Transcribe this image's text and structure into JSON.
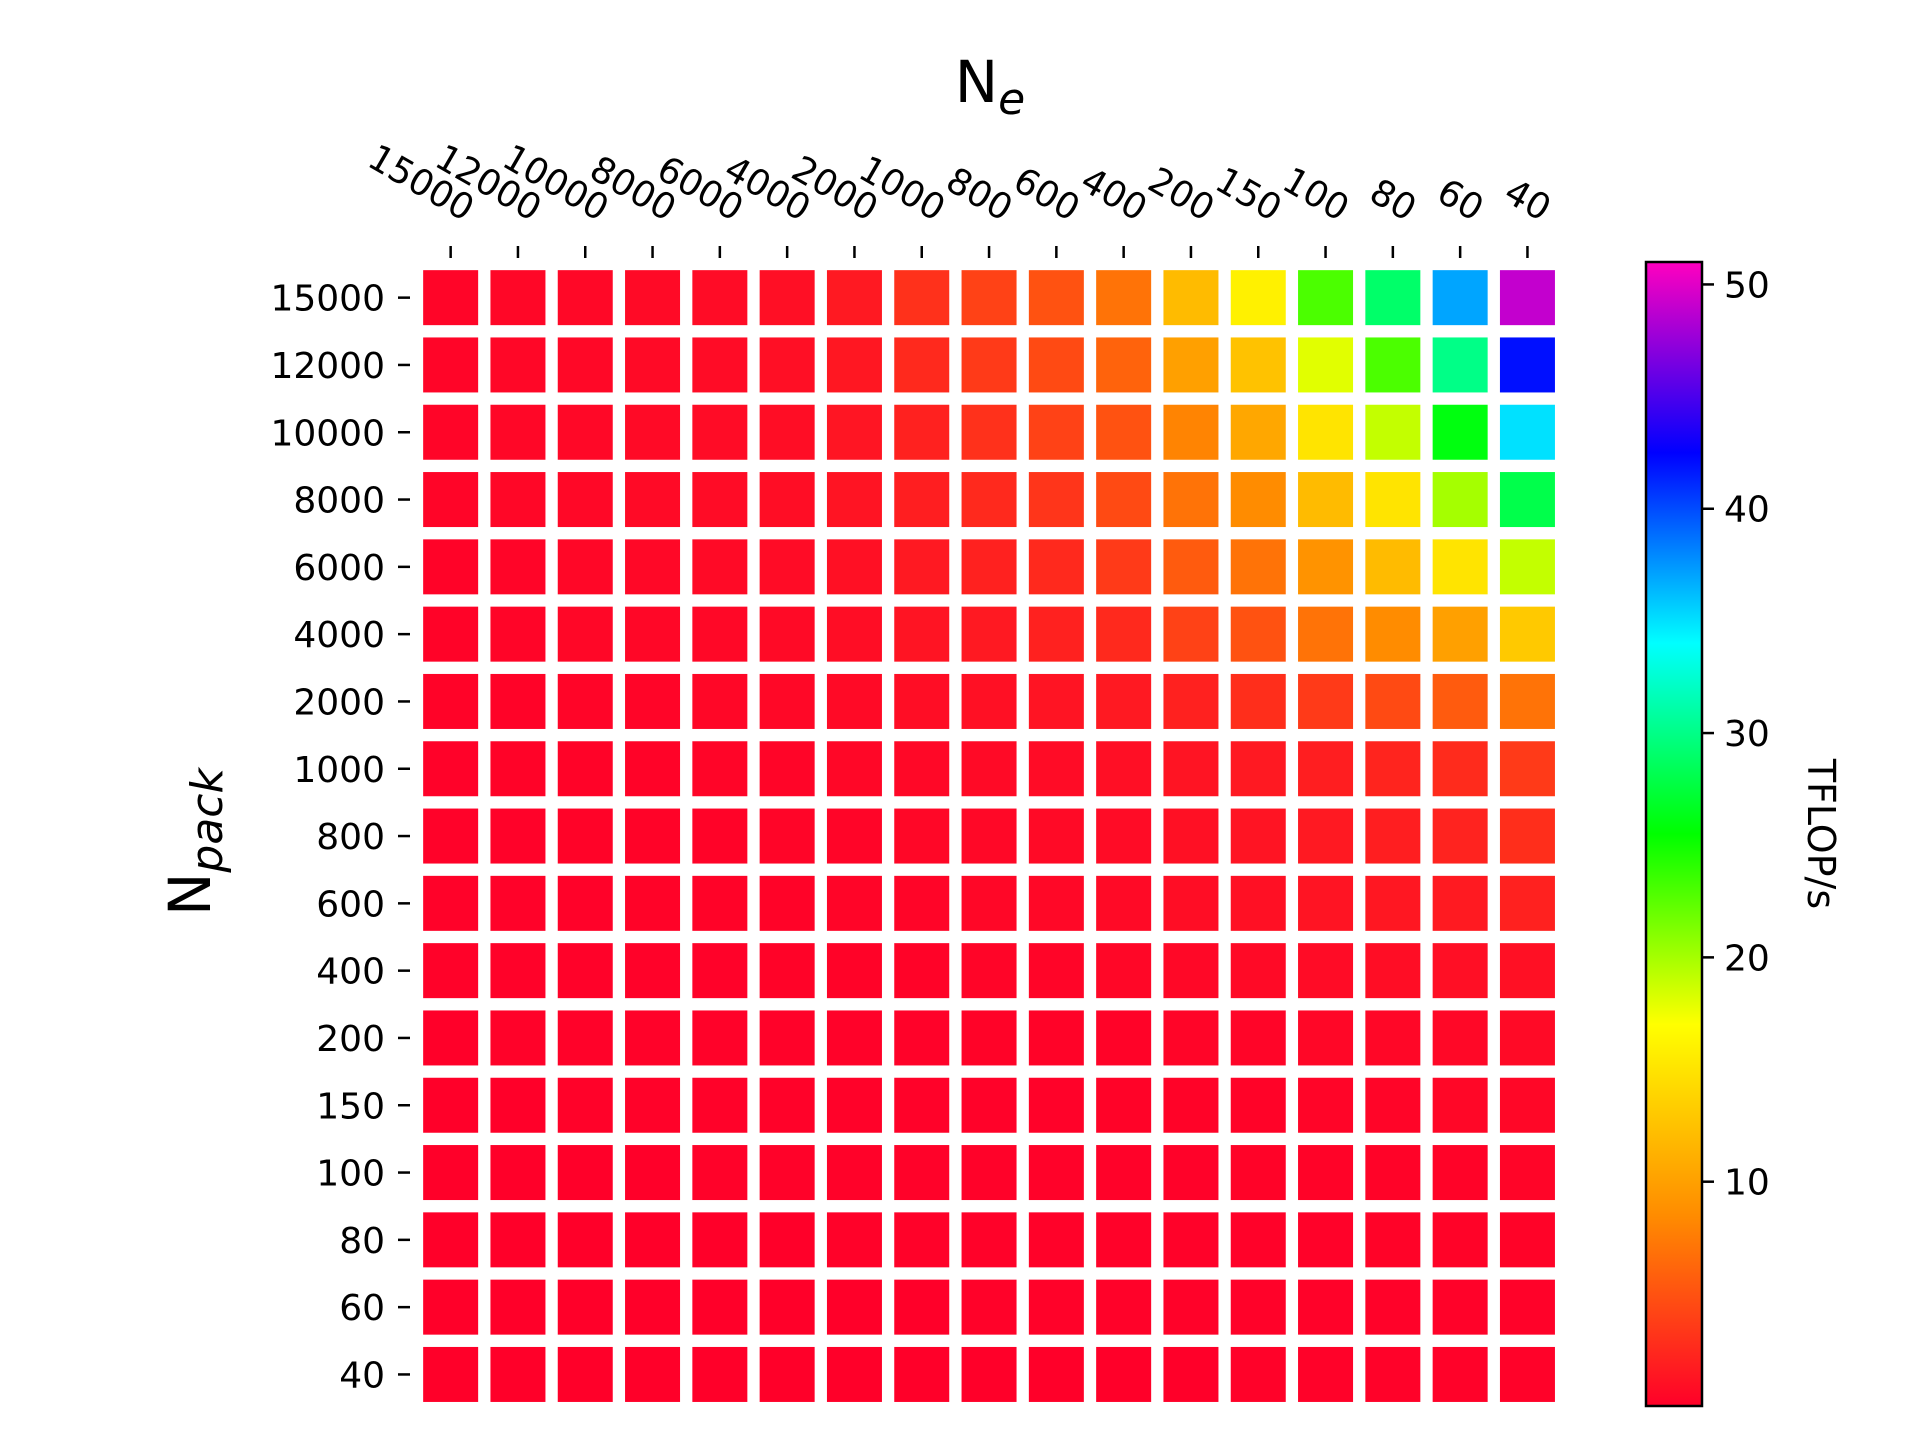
{
  "chart_data": {
    "type": "heatmap",
    "title": "",
    "xlabel": {
      "base": "N",
      "sub": "e"
    },
    "ylabel": {
      "base": "N",
      "sub": "pack"
    },
    "x_categories": [
      "15000",
      "12000",
      "10000",
      "8000",
      "6000",
      "4000",
      "2000",
      "1000",
      "800",
      "600",
      "400",
      "200",
      "150",
      "100",
      "80",
      "60",
      "40"
    ],
    "y_categories": [
      "15000",
      "12000",
      "10000",
      "8000",
      "6000",
      "4000",
      "2000",
      "1000",
      "800",
      "600",
      "400",
      "200",
      "150",
      "100",
      "80",
      "60",
      "40"
    ],
    "values": [
      [
        0.3,
        0.4,
        0.5,
        0.6,
        0.7,
        0.9,
        1.5,
        3.0,
        4.0,
        5.0,
        7.0,
        12.0,
        16.0,
        23.0,
        29.0,
        37.0,
        49.0
      ],
      [
        0.3,
        0.4,
        0.5,
        0.6,
        0.7,
        0.9,
        1.4,
        2.5,
        3.5,
        4.5,
        6.0,
        10.0,
        12.5,
        18.0,
        23.0,
        30.0,
        42.0
      ],
      [
        0.3,
        0.4,
        0.5,
        0.6,
        0.7,
        0.8,
        1.3,
        2.0,
        3.0,
        4.0,
        5.0,
        8.0,
        10.5,
        15.0,
        19.0,
        26.0,
        35.0
      ],
      [
        0.3,
        0.4,
        0.5,
        0.6,
        0.7,
        0.8,
        1.2,
        1.8,
        2.5,
        3.2,
        4.5,
        7.0,
        8.5,
        12.0,
        15.0,
        20.0,
        28.0
      ],
      [
        0.2,
        0.3,
        0.4,
        0.5,
        0.6,
        0.7,
        1.0,
        1.5,
        2.0,
        2.5,
        3.5,
        5.5,
        7.0,
        9.0,
        12.0,
        15.0,
        19.0
      ],
      [
        0.2,
        0.3,
        0.4,
        0.4,
        0.5,
        0.6,
        0.8,
        1.2,
        1.5,
        2.0,
        2.5,
        4.0,
        5.0,
        7.0,
        8.5,
        10.0,
        13.0
      ],
      [
        0.2,
        0.2,
        0.3,
        0.3,
        0.4,
        0.5,
        0.6,
        0.8,
        1.0,
        1.2,
        1.5,
        2.0,
        2.8,
        3.5,
        4.5,
        5.5,
        7.0
      ],
      [
        0.1,
        0.2,
        0.2,
        0.2,
        0.3,
        0.3,
        0.4,
        0.5,
        0.6,
        0.7,
        0.9,
        1.2,
        1.5,
        1.8,
        2.2,
        2.6,
        3.5
      ],
      [
        0.1,
        0.1,
        0.2,
        0.2,
        0.2,
        0.3,
        0.3,
        0.4,
        0.5,
        0.6,
        0.7,
        1.0,
        1.2,
        1.5,
        1.8,
        2.1,
        2.8
      ],
      [
        0.1,
        0.1,
        0.1,
        0.2,
        0.2,
        0.2,
        0.3,
        0.3,
        0.4,
        0.5,
        0.6,
        0.8,
        1.0,
        1.2,
        1.4,
        1.6,
        2.0
      ],
      [
        0.1,
        0.1,
        0.1,
        0.1,
        0.1,
        0.2,
        0.2,
        0.2,
        0.3,
        0.3,
        0.4,
        0.5,
        0.6,
        0.7,
        0.8,
        0.9,
        1.0
      ],
      [
        0.0,
        0.1,
        0.1,
        0.1,
        0.1,
        0.1,
        0.1,
        0.1,
        0.2,
        0.2,
        0.2,
        0.3,
        0.3,
        0.4,
        0.4,
        0.5,
        0.6
      ],
      [
        0.0,
        0.0,
        0.1,
        0.1,
        0.1,
        0.1,
        0.1,
        0.1,
        0.1,
        0.1,
        0.2,
        0.2,
        0.2,
        0.3,
        0.3,
        0.4,
        0.4
      ],
      [
        0.0,
        0.0,
        0.0,
        0.0,
        0.1,
        0.1,
        0.1,
        0.1,
        0.1,
        0.1,
        0.1,
        0.1,
        0.2,
        0.2,
        0.2,
        0.2,
        0.3
      ],
      [
        0.0,
        0.0,
        0.0,
        0.0,
        0.0,
        0.0,
        0.1,
        0.1,
        0.1,
        0.1,
        0.1,
        0.1,
        0.1,
        0.1,
        0.2,
        0.2,
        0.2
      ],
      [
        0.0,
        0.0,
        0.0,
        0.0,
        0.0,
        0.0,
        0.0,
        0.0,
        0.1,
        0.1,
        0.1,
        0.1,
        0.1,
        0.1,
        0.1,
        0.1,
        0.1
      ],
      [
        0.0,
        0.0,
        0.0,
        0.0,
        0.0,
        0.0,
        0.0,
        0.0,
        0.0,
        0.0,
        0.0,
        0.0,
        0.1,
        0.1,
        0.1,
        0.1,
        0.1
      ]
    ],
    "colorbar": {
      "label": "TFLOP/s",
      "ticks": [
        10,
        20,
        30,
        40,
        50
      ],
      "range": [
        0,
        51
      ],
      "colormap": "gist_rainbow_r",
      "stops": [
        "#ff0029",
        "#ff8c00",
        "#ffff00",
        "#00ff00",
        "#00ffff",
        "#0000ff",
        "#ff00bf"
      ]
    },
    "xaxis_position": "top",
    "grid": false,
    "legend": "colorbar-right"
  }
}
